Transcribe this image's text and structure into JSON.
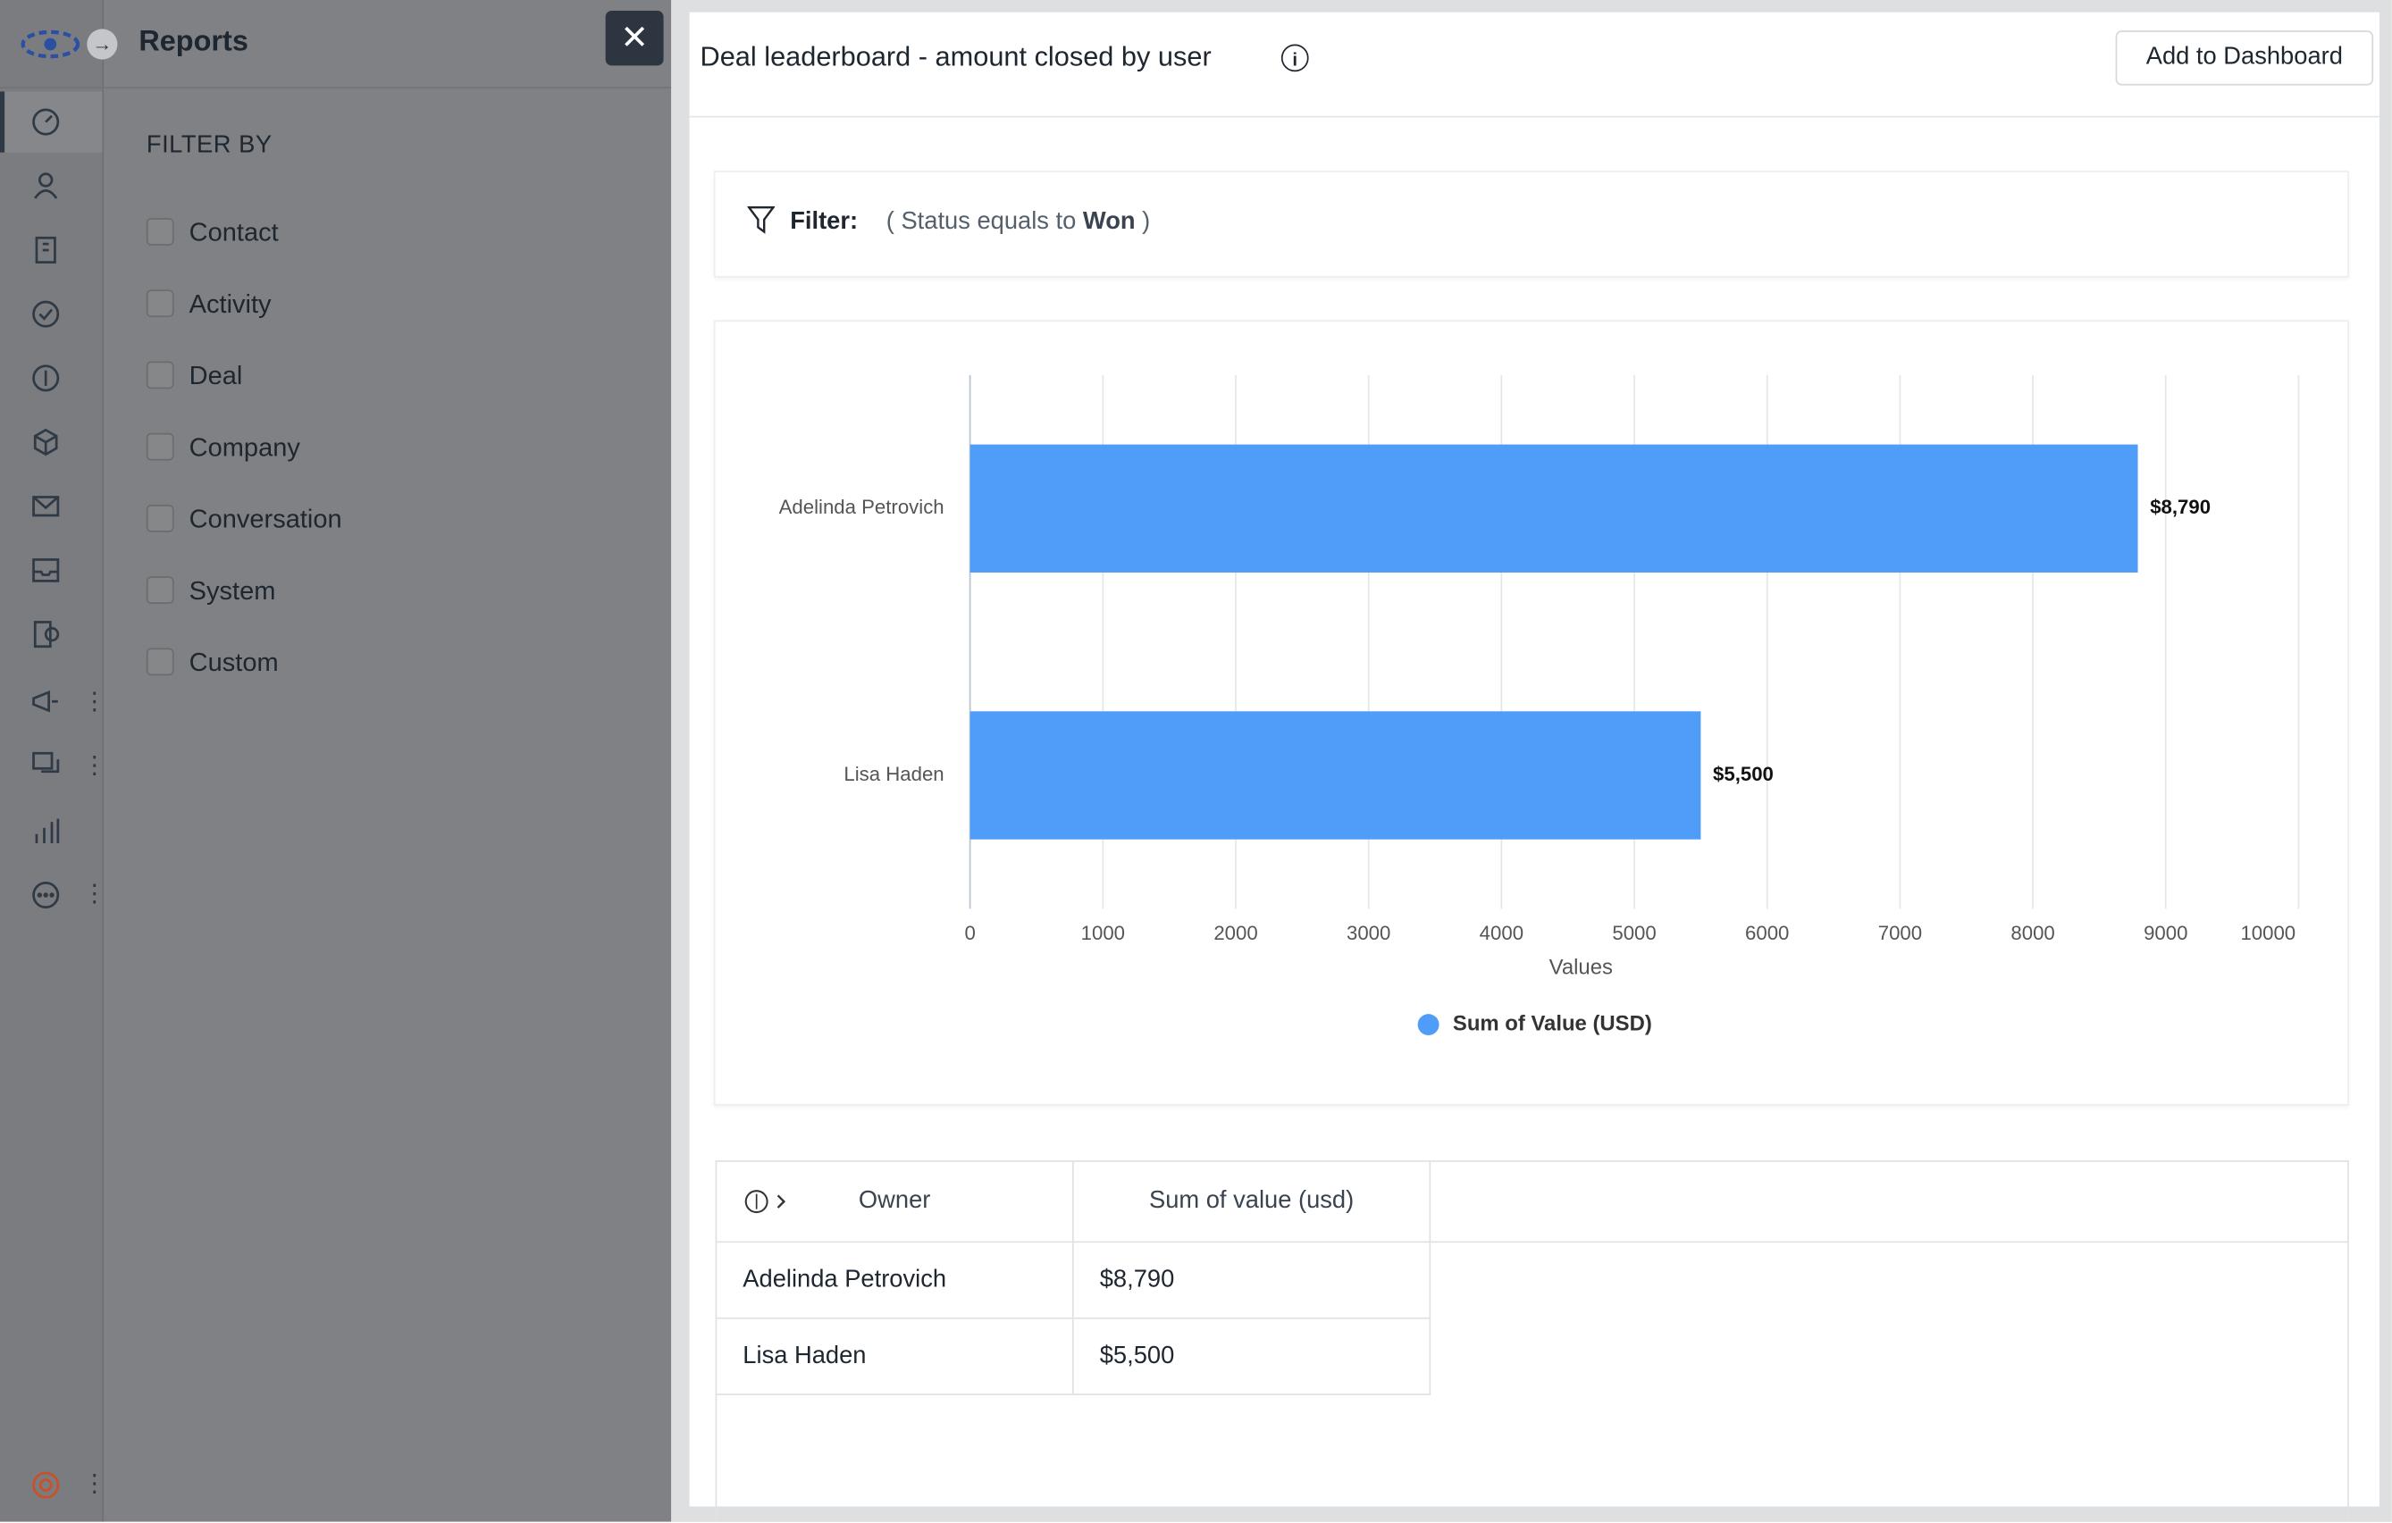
{
  "sidebar": {
    "title": "Reports",
    "filter_heading": "FILTER BY",
    "filters": [
      "Contact",
      "Activity",
      "Deal",
      "Company",
      "Conversation",
      "System",
      "Custom"
    ]
  },
  "panel": {
    "title": "Deal leaderboard - amount closed by user",
    "button": "Add to Dashboard",
    "filter": {
      "label": "Filter:",
      "prefix": "( Status equals to",
      "value": "Won",
      "suffix": ")"
    }
  },
  "chart_data": {
    "type": "bar",
    "orientation": "horizontal",
    "categories": [
      "Adelinda Petrovich",
      "Lisa Haden"
    ],
    "series": [
      {
        "name": "Sum of Value (USD)",
        "color": "#4f9cf9",
        "values": [
          8790,
          5500
        ],
        "value_labels": [
          "$8,790",
          "$5,500"
        ]
      }
    ],
    "xlim": [
      0,
      10000
    ],
    "xticks": [
      0,
      1000,
      2000,
      3000,
      4000,
      5000,
      6000,
      7000,
      8000,
      9000,
      10000
    ],
    "xlabel": "Values",
    "grid": true,
    "legend": "bottom"
  },
  "table": {
    "headers": [
      "Owner",
      "Sum of value (usd)"
    ],
    "rows": [
      [
        "Adelinda Petrovich",
        "$8,790"
      ],
      [
        "Lisa Haden",
        "$5,500"
      ]
    ]
  }
}
